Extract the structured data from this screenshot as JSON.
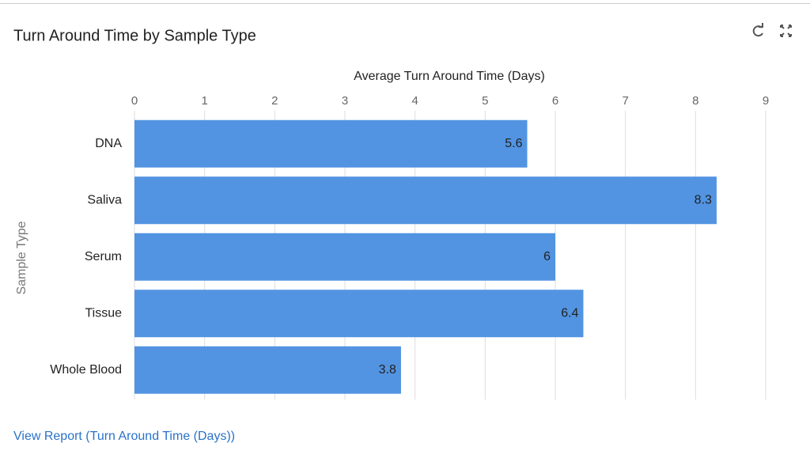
{
  "chart_data": {
    "type": "bar",
    "orientation": "horizontal",
    "title": "Turn Around Time by Sample Type",
    "x_label": "Average Turn Around Time (Days)",
    "y_label": "Sample Type",
    "categories": [
      "DNA",
      "Saliva",
      "Serum",
      "Tissue",
      "Whole Blood"
    ],
    "values": [
      5.6,
      8.3,
      6,
      6.4,
      3.8
    ],
    "color": "#5294e2",
    "xlim": [
      0,
      9
    ],
    "xticks": [
      0,
      1,
      2,
      3,
      4,
      5,
      6,
      7,
      8,
      9
    ],
    "grid": true
  },
  "link": "View Report (Turn Around Time (Days))"
}
